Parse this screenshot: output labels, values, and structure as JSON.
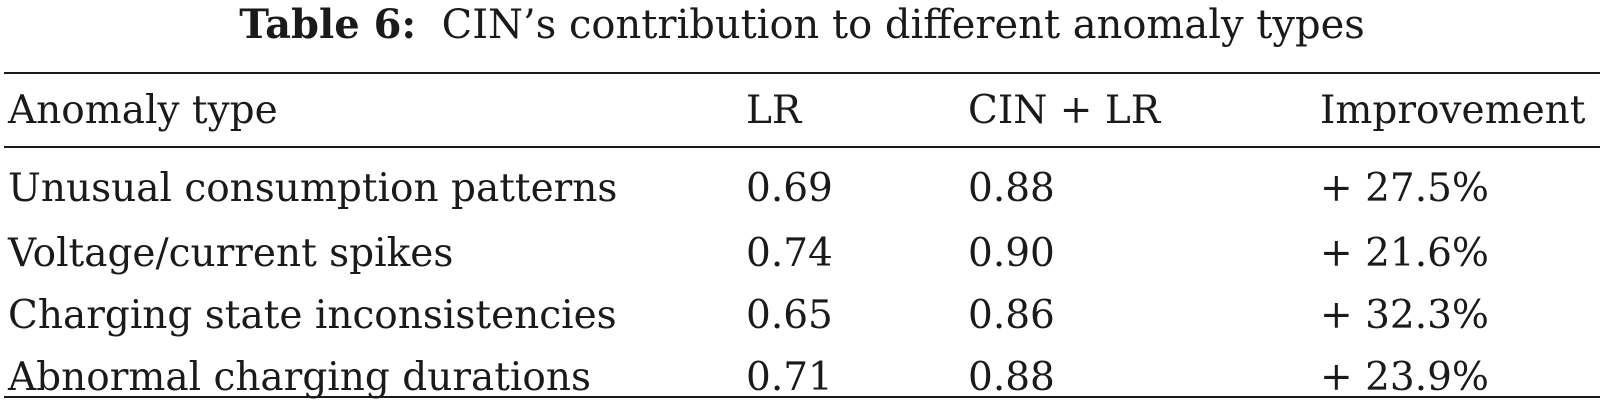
{
  "caption": {
    "label": "Table 6:",
    "text": "CIN’s contribution to different anomaly types"
  },
  "table": {
    "headers": [
      "Anomaly type",
      "LR",
      "CIN + LR",
      "Improvement"
    ],
    "rows": [
      [
        "Unusual consumption patterns",
        "0.69",
        "0.88",
        "+ 27.5%"
      ],
      [
        "Voltage/current spikes",
        "0.74",
        "0.90",
        "+ 21.6%"
      ],
      [
        "Charging state inconsistencies",
        "0.65",
        "0.86",
        "+ 32.3%"
      ],
      [
        "Abnormal charging durations",
        "0.71",
        "0.88",
        "+ 23.9%"
      ]
    ]
  }
}
